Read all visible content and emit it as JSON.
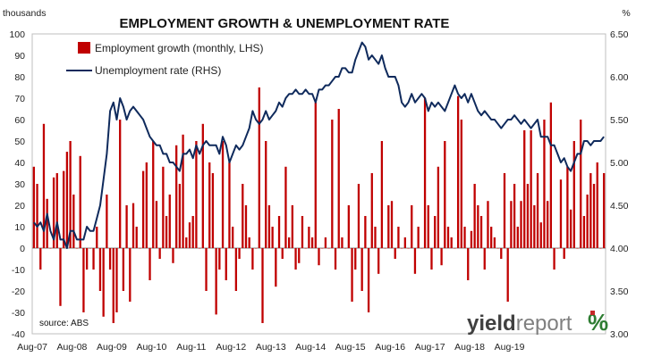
{
  "chart_data": {
    "type": "bar+line",
    "title": "EMPLOYMENT GROWTH & UNEMPLOYMENT RATE",
    "left_axis_unit": "thousands",
    "right_axis_unit": "%",
    "left_ylim": [
      -40,
      100
    ],
    "right_ylim": [
      3.0,
      6.5
    ],
    "left_ticks": [
      "100",
      "90",
      "80",
      "70",
      "60",
      "50",
      "40",
      "30",
      "20",
      "10",
      "0",
      "-10",
      "-20",
      "-30",
      "-40"
    ],
    "right_ticks": [
      "6.50",
      "6.00",
      "5.50",
      "5.00",
      "4.50",
      "4.00",
      "3.50",
      "3.00"
    ],
    "x_tick_labels": [
      "Aug-07",
      "Aug-08",
      "Aug-09",
      "Aug-10",
      "Aug-11",
      "Aug-12",
      "Aug-13",
      "Aug-14",
      "Aug-15",
      "Aug-16",
      "Aug-17",
      "Aug-18",
      "Aug-19"
    ],
    "start_month": "Aug-07",
    "grid": false,
    "legend_position": "top-left",
    "series": [
      {
        "name": "Employment growth (monthly, LHS)",
        "kind": "bar",
        "axis": "left",
        "color": "#c00000",
        "values": [
          38,
          30,
          -10,
          58,
          23,
          0,
          33,
          35,
          -27,
          36,
          45,
          50,
          25,
          0,
          43,
          -30,
          -10,
          0,
          -10,
          10,
          -20,
          -32,
          25,
          -10,
          -35,
          -30,
          60,
          -20,
          20,
          -25,
          21,
          10,
          0,
          36,
          40,
          -15,
          50,
          22,
          -5,
          38,
          15,
          25,
          -7,
          48,
          30,
          53,
          5,
          12,
          15,
          50,
          0,
          58,
          -20,
          40,
          35,
          -31,
          -10,
          50,
          -15,
          40,
          10,
          -20,
          -5,
          30,
          20,
          5,
          -10,
          0,
          75,
          -35,
          50,
          20,
          10,
          -18,
          15,
          -5,
          38,
          5,
          20,
          -10,
          -7,
          15,
          0,
          10,
          5,
          68,
          -8,
          0,
          5,
          0,
          60,
          -10,
          65,
          5,
          0,
          20,
          -25,
          -10,
          30,
          -20,
          15,
          -30,
          35,
          10,
          -12,
          50,
          0,
          20,
          22,
          -5,
          10,
          0,
          5,
          0,
          20,
          -12,
          10,
          0,
          70,
          20,
          -10,
          15,
          38,
          -8,
          50,
          10,
          5,
          0,
          71,
          60,
          10,
          -15,
          8,
          30,
          20,
          15,
          -10,
          22,
          10,
          5,
          0,
          -5,
          35,
          -25,
          22,
          30,
          10,
          22,
          55,
          30,
          55,
          20,
          35,
          12,
          60,
          22,
          68,
          -10,
          0,
          32,
          -5,
          38,
          18,
          50,
          0,
          60,
          15,
          25,
          35,
          30,
          40,
          0,
          35
        ]
      },
      {
        "name": "Unemployment rate (RHS)",
        "kind": "line",
        "axis": "right",
        "color": "#0f2a5c",
        "values": [
          4.3,
          4.25,
          4.3,
          4.2,
          4.4,
          4.2,
          4.1,
          4.3,
          4.1,
          4.1,
          4.0,
          4.2,
          4.2,
          4.1,
          4.1,
          4.1,
          4.25,
          4.2,
          4.2,
          4.35,
          4.5,
          4.8,
          5.1,
          5.6,
          5.7,
          5.5,
          5.75,
          5.65,
          5.5,
          5.6,
          5.65,
          5.6,
          5.55,
          5.5,
          5.4,
          5.3,
          5.25,
          5.2,
          5.2,
          5.1,
          5.1,
          5.0,
          5.0,
          4.95,
          4.9,
          5.1,
          5.1,
          5.15,
          5.05,
          5.2,
          5.1,
          5.2,
          5.25,
          5.2,
          5.2,
          5.2,
          5.1,
          5.3,
          5.2,
          5.0,
          5.1,
          5.2,
          5.15,
          5.2,
          5.3,
          5.4,
          5.6,
          5.5,
          5.45,
          5.5,
          5.6,
          5.5,
          5.55,
          5.6,
          5.7,
          5.65,
          5.75,
          5.8,
          5.8,
          5.85,
          5.8,
          5.8,
          5.85,
          5.8,
          5.8,
          5.7,
          5.85,
          5.85,
          5.9,
          5.9,
          5.95,
          6.0,
          6.0,
          6.1,
          6.1,
          6.05,
          6.05,
          6.2,
          6.3,
          6.4,
          6.35,
          6.2,
          6.25,
          6.2,
          6.15,
          6.25,
          6.1,
          6.0,
          6.0,
          6.0,
          5.9,
          5.7,
          5.65,
          5.7,
          5.8,
          5.7,
          5.75,
          5.8,
          5.75,
          5.6,
          5.7,
          5.65,
          5.7,
          5.65,
          5.6,
          5.7,
          5.8,
          5.9,
          5.8,
          5.75,
          5.8,
          5.7,
          5.8,
          5.7,
          5.6,
          5.55,
          5.6,
          5.55,
          5.5,
          5.5,
          5.45,
          5.4,
          5.45,
          5.5,
          5.5,
          5.55,
          5.5,
          5.45,
          5.5,
          5.45,
          5.4,
          5.45,
          5.5,
          5.3,
          5.3,
          5.3,
          5.2,
          5.2,
          5.1,
          5.0,
          5.05,
          4.95,
          4.9,
          5.0,
          5.1,
          5.1,
          5.25,
          5.25,
          5.2,
          5.25,
          5.25,
          5.25,
          5.3
        ]
      }
    ]
  },
  "source_text": "source: ABS",
  "logo": {
    "word1": "yield",
    "word2": "report",
    "symbol": "%"
  }
}
